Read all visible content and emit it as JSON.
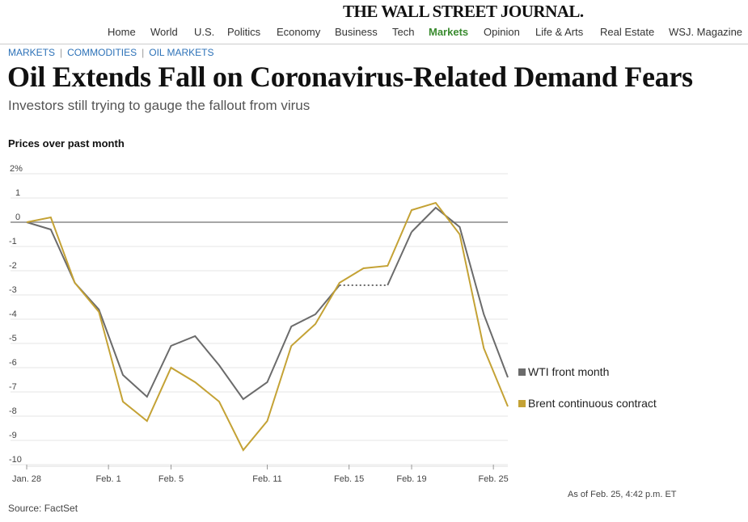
{
  "masthead": {
    "title": "THE WALL STREET JOURNAL."
  },
  "nav": {
    "items": [
      {
        "label": "Home"
      },
      {
        "label": "World"
      },
      {
        "label": "U.S."
      },
      {
        "label": "Politics"
      },
      {
        "label": "Economy"
      },
      {
        "label": "Business"
      },
      {
        "label": "Tech"
      },
      {
        "label": "Markets"
      },
      {
        "label": "Opinion"
      },
      {
        "label": "Life & Arts"
      },
      {
        "label": "Real Estate"
      },
      {
        "label": "WSJ. Magazine"
      }
    ],
    "active": "Markets",
    "active_color": "#3a8b2f"
  },
  "breadcrumb": [
    "MARKETS",
    "COMMODITIES",
    "OIL MARKETS"
  ],
  "article": {
    "headline": "Oil Extends Fall on Coronavirus-Related Demand Fears",
    "dek": "Investors still trying to gauge the fallout from virus"
  },
  "chart_data": {
    "type": "line",
    "title": "Prices over past month",
    "ylim": [
      -10,
      2
    ],
    "yticks": [
      2,
      1,
      0,
      -1,
      -2,
      -3,
      -4,
      -5,
      -6,
      -7,
      -8,
      -9,
      -10
    ],
    "ytick_labels": [
      "2%",
      "1",
      "0",
      "-1",
      "-2",
      "-3",
      "-4",
      "-5",
      "-6",
      "-7",
      "-8",
      "-9",
      "-10"
    ],
    "xlim": [
      0,
      20
    ],
    "xticks": [
      {
        "x": 0,
        "label": "Jan. 28"
      },
      {
        "x": 3.4,
        "label": "Feb. 1"
      },
      {
        "x": 6,
        "label": "Feb. 5"
      },
      {
        "x": 10,
        "label": "Feb. 11"
      },
      {
        "x": 13.4,
        "label": "Feb. 15"
      },
      {
        "x": 16,
        "label": "Feb. 19"
      },
      {
        "x": 19.4,
        "label": "Feb. 25"
      }
    ],
    "grid": true,
    "legend": "right",
    "series": [
      {
        "name": "WTI front month",
        "color": "#6b6b6b",
        "x": [
          0,
          1,
          2,
          3,
          4,
          5,
          6,
          7,
          8,
          9,
          10,
          11,
          12,
          13,
          16,
          17,
          18,
          19,
          20
        ],
        "values": [
          0,
          -0.3,
          -2.5,
          -3.6,
          -6.3,
          -7.2,
          -5.1,
          -4.7,
          -5.9,
          -7.3,
          -6.6,
          -4.3,
          -3.8,
          -2.6,
          -0.4,
          0.6,
          -0.2,
          -3.8,
          -6.4
        ],
        "gap": {
          "from_x": 13,
          "to_x": 15,
          "value": -2.6
        }
      },
      {
        "name": "Brent continuous contract",
        "color": "#c4a235",
        "x": [
          0,
          1,
          2,
          3,
          4,
          5,
          6,
          7,
          8,
          9,
          10,
          11,
          12,
          13,
          14,
          15,
          16,
          17,
          18,
          19,
          20
        ],
        "values": [
          0,
          0.2,
          -2.5,
          -3.7,
          -7.4,
          -8.2,
          -6.0,
          -6.6,
          -7.4,
          -9.4,
          -8.2,
          -5.1,
          -4.2,
          -2.5,
          -1.9,
          -1.8,
          0.5,
          0.8,
          -0.5,
          -5.2,
          -7.6
        ]
      }
    ],
    "zero_line_color": "#888888",
    "grid_color": "#e6e6e6"
  },
  "footer": {
    "as_of": "As of Feb. 25, 4:42 p.m. ET",
    "source": "Source: FactSet"
  }
}
